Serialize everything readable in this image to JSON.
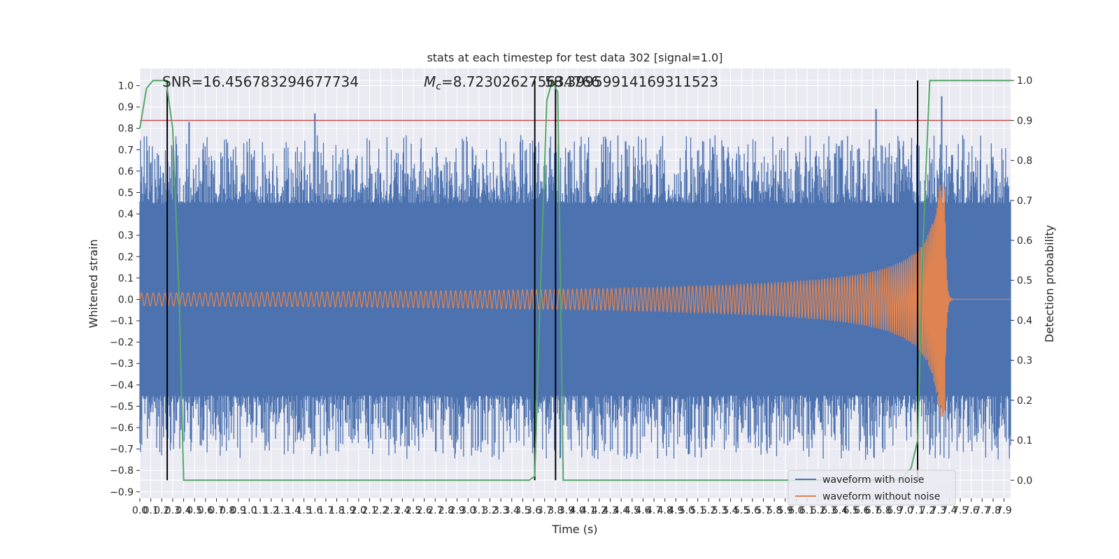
{
  "chart_data": {
    "type": "line",
    "title": "stats at each timestep for test data 302 [signal=1.0]",
    "xlabel": "Time (s)",
    "ylabel": "Whitened strain",
    "ylabel_right": "Detection probability",
    "xlim": [
      0.0,
      7.96
    ],
    "ylim": [
      -0.93,
      1.08
    ],
    "ylim_right": [
      -0.045,
      1.03
    ],
    "x_ticks": [
      "0.0",
      "0.1",
      "0.2",
      "0.3",
      "0.4",
      "0.5",
      "0.6",
      "0.7",
      "0.8",
      "0.9",
      "1.0",
      "1.1",
      "1.2",
      "1.3",
      "1.4",
      "1.5",
      "1.6",
      "1.7",
      "1.8",
      "1.9",
      "2.0",
      "2.1",
      "2.2",
      "2.3",
      "2.4",
      "2.5",
      "2.6",
      "2.7",
      "2.8",
      "2.9",
      "3.0",
      "3.1",
      "3.2",
      "3.3",
      "3.4",
      "3.5",
      "3.6",
      "3.7",
      "3.8",
      "3.9",
      "4.0",
      "4.1",
      "4.2",
      "4.3",
      "4.4",
      "4.5",
      "4.6",
      "4.7",
      "4.8",
      "4.9",
      "5.0",
      "5.1",
      "5.2",
      "5.3",
      "5.4",
      "5.5",
      "5.6",
      "5.7",
      "5.8",
      "5.9",
      "6.0",
      "6.1",
      "6.2",
      "6.3",
      "6.4",
      "6.5",
      "6.6",
      "6.7",
      "6.8",
      "6.9",
      "7.0",
      "7.1",
      "7.2",
      "7.3",
      "7.4",
      "7.5",
      "7.6",
      "7.7",
      "7.8",
      "7.9"
    ],
    "y_ticks": [
      "1.0",
      "0.9",
      "0.8",
      "0.7",
      "0.6",
      "0.5",
      "0.4",
      "0.3",
      "0.2",
      "0.1",
      "0.0",
      "−0.1",
      "−0.2",
      "−0.3",
      "−0.4",
      "−0.5",
      "−0.6",
      "−0.7",
      "−0.8",
      "−0.9"
    ],
    "y_ticks_right": [
      "1.0",
      "0.9",
      "0.8",
      "0.7",
      "0.6",
      "0.5",
      "0.4",
      "0.3",
      "0.2",
      "0.1",
      "0.0"
    ],
    "annotations": {
      "snr": "SNR=16.456783294677734",
      "mc": "=8.723026275634766",
      "mc_symbol": "M",
      "mc_sub": "c",
      "overlap": "58.39959914169311523"
    },
    "threshold": 0.9,
    "vertical_lines_x": [
      0.25,
      3.61,
      3.8,
      7.11
    ],
    "series": [
      {
        "name": "waveform with noise",
        "color": "#4c72b0",
        "band_upper": 0.45,
        "band_lower": -0.45,
        "peak_x": [
          0.45,
          1.6,
          6.73,
          7.33
        ],
        "peak_y": [
          0.83,
          0.87,
          0.89,
          0.95
        ]
      },
      {
        "name": "waveform without noise",
        "color": "#dd8452",
        "amp_start": 0.03,
        "amp_end": 0.55,
        "merger_x": 7.36
      },
      {
        "name": "detection probability",
        "color": "#55a868",
        "x": [
          0.0,
          0.06,
          0.12,
          0.2,
          0.24,
          0.3,
          0.36,
          0.4,
          3.56,
          3.61,
          3.66,
          3.72,
          3.77,
          3.82,
          3.87,
          6.95,
          7.05,
          7.11,
          7.16,
          7.22,
          7.96
        ],
        "y": [
          0.88,
          0.98,
          1.0,
          1.0,
          1.0,
          0.88,
          0.45,
          0.0,
          0.0,
          0.01,
          0.46,
          0.95,
          1.0,
          0.97,
          0.0,
          0.0,
          0.03,
          0.1,
          0.6,
          1.0,
          1.0
        ]
      }
    ],
    "legend_position": "lower-right",
    "grid": true
  },
  "colors": {
    "plot_bg": "#eaeaf2",
    "grid": "#ffffff",
    "threshold": "#c44e52",
    "vline": "#000000"
  }
}
